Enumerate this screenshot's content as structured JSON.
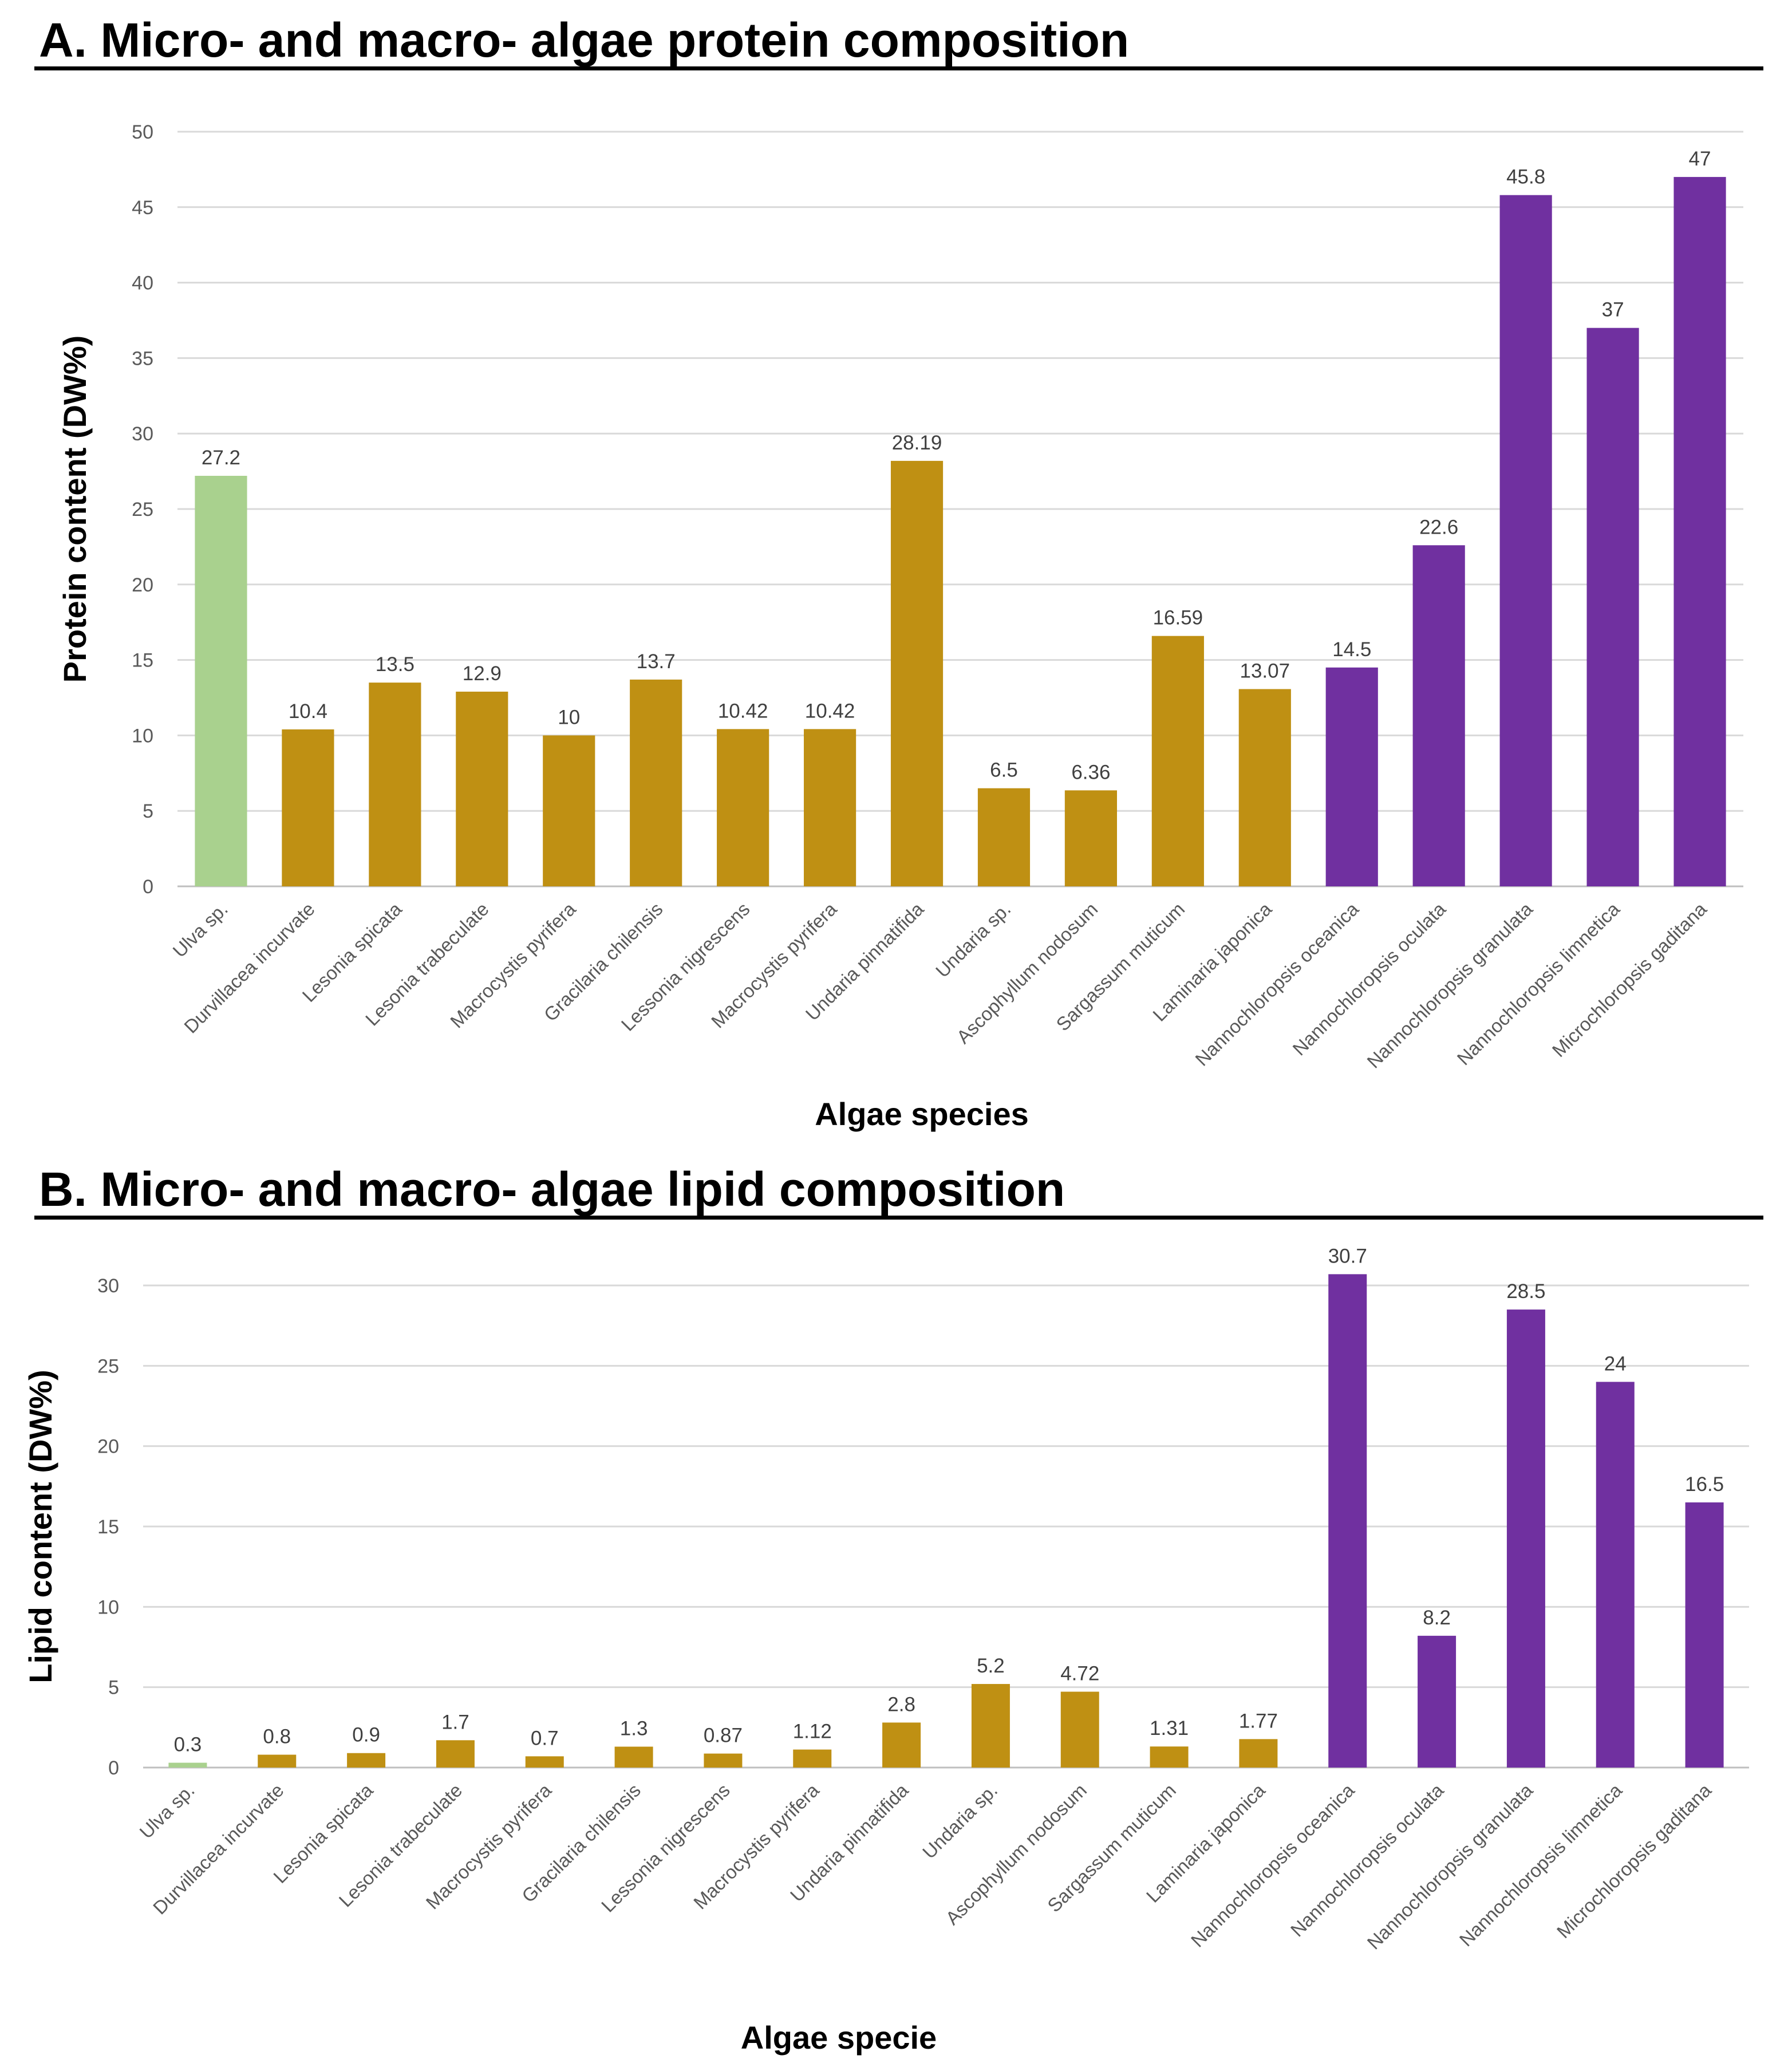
{
  "colors": {
    "ulva": "#a9d18e",
    "macro": "#bf9013",
    "micro": "#7030a0"
  },
  "chart_data": [
    {
      "type": "bar",
      "title": "A. Micro- and macro- algae protein composition",
      "xlabel": "Algae species",
      "ylabel": "Protein content (DW%)",
      "ylim": [
        0,
        50
      ],
      "yticks": [
        "0",
        "5",
        "10",
        "15",
        "20",
        "25",
        "30",
        "35",
        "40",
        "45",
        "50"
      ],
      "grid": true,
      "categories": [
        "Ulva sp.",
        "Durvillacea incurvate",
        "Lesonia spicata",
        "Lesonia trabeculate",
        "Macrocystis pyrifera",
        "Gracilaria chilensis",
        "Lessonia nigrescens",
        "Macrocystis pyrifera",
        "Undaria pinnatifida",
        "Undaria sp.",
        "Ascophyllum nodosum",
        "Sargassum muticum",
        "Laminaria japonica",
        "Nannochloropsis oceanica",
        "Nannochloropsis oculata",
        "Nannochloropsis granulata",
        "Nannochloropsis limnetica",
        "Microchloropsis gaditana"
      ],
      "values": [
        27.2,
        10.4,
        13.5,
        12.9,
        10,
        13.7,
        10.42,
        10.42,
        28.19,
        6.5,
        6.36,
        16.59,
        13.07,
        14.5,
        22.6,
        45.8,
        37,
        47
      ],
      "labels": [
        "27.2",
        "10.4",
        "13.5",
        "12.9",
        "10",
        "13.7",
        "10.42",
        "10.42",
        "28.19",
        "6.5",
        "6.36",
        "16.59",
        "13.07",
        "14.5",
        "22.6",
        "45.8",
        "37",
        "47"
      ],
      "groups": [
        "ulva",
        "macro",
        "macro",
        "macro",
        "macro",
        "macro",
        "macro",
        "macro",
        "macro",
        "macro",
        "macro",
        "macro",
        "macro",
        "micro",
        "micro",
        "micro",
        "micro",
        "micro"
      ]
    },
    {
      "type": "bar",
      "title": "B. Micro- and macro- algae lipid composition",
      "xlabel": "Algae specie",
      "ylabel": "Lipid content (DW%)",
      "ylim": [
        0,
        30
      ],
      "yticks": [
        "0",
        "5",
        "10",
        "15",
        "20",
        "25",
        "30"
      ],
      "grid": true,
      "categories": [
        "Ulva sp.",
        "Durvillacea incurvate",
        "Lesonia spicata",
        "Lesonia trabeculate",
        "Macrocystis pyrifera",
        "Gracilaria chilensis",
        "Lessonia nigrescens",
        "Macrocystis pyrifera",
        "Undaria pinnatifida",
        "Undaria sp.",
        "Ascophyllum nodosum",
        "Sargassum muticum",
        "Laminaria japonica",
        "Nannochloropsis oceanica",
        "Nannochloropsis oculata",
        "Nannochloropsis granulata",
        "Nannochloropsis limnetica",
        "Microchloropsis gaditana"
      ],
      "values": [
        0.3,
        0.8,
        0.9,
        1.7,
        0.7,
        1.3,
        0.87,
        1.12,
        2.8,
        5.2,
        4.72,
        1.31,
        1.77,
        30.7,
        8.2,
        28.5,
        24,
        16.5
      ],
      "labels": [
        "0.3",
        "0.8",
        "0.9",
        "1.7",
        "0.7",
        "1.3",
        "0.87",
        "1.12",
        "2.8",
        "5.2",
        "4.72",
        "1.31",
        "1.77",
        "30.7",
        "8.2",
        "28.5",
        "24",
        "16.5"
      ],
      "groups": [
        "ulva",
        "macro",
        "macro",
        "macro",
        "macro",
        "macro",
        "macro",
        "macro",
        "macro",
        "macro",
        "macro",
        "macro",
        "macro",
        "micro",
        "micro",
        "micro",
        "micro",
        "micro"
      ]
    }
  ]
}
